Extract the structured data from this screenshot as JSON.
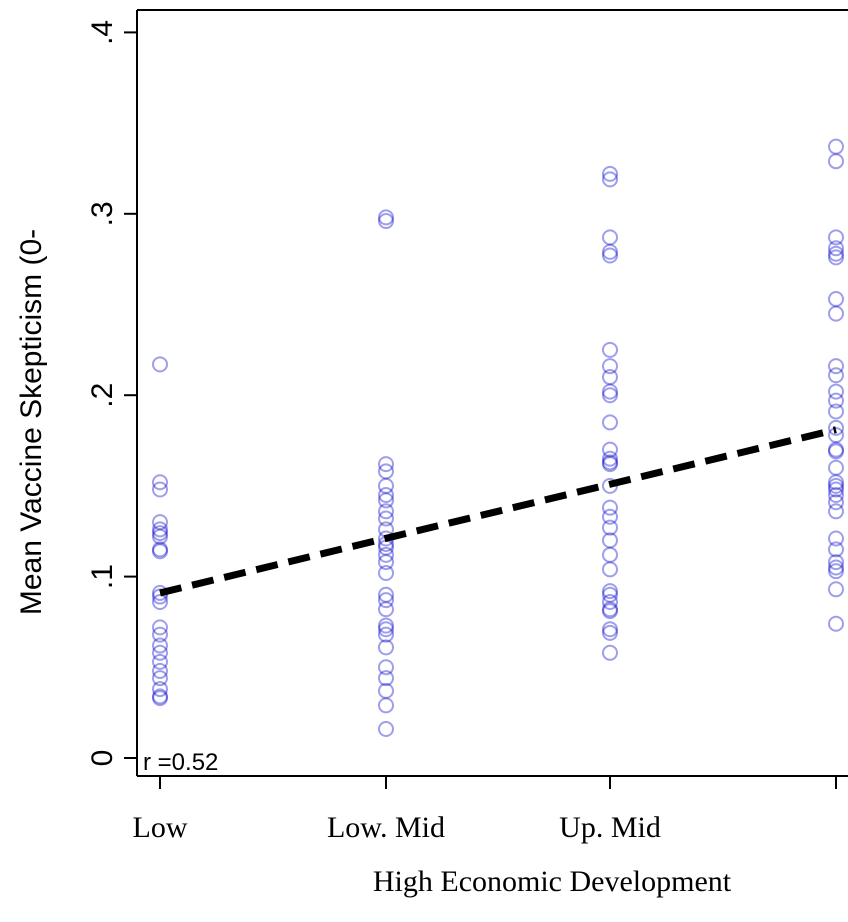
{
  "chart_data": {
    "type": "scatter",
    "xlabel": "High Economic Development",
    "ylabel": "Mean Vaccine Skepticism (0-",
    "categories": [
      "Low",
      "Low. Mid",
      "Up. Mid",
      ""
    ],
    "yticks": [
      {
        "value": 0,
        "label": "0"
      },
      {
        "value": 0.1,
        "label": ".1"
      },
      {
        "value": 0.2,
        "label": ".2"
      },
      {
        "value": 0.3,
        "label": ".3"
      },
      {
        "value": 0.4,
        "label": ".4"
      }
    ],
    "ylim": [
      -0.007,
      0.43
    ],
    "annotation": "r =0.52",
    "colors": {
      "points": "#0000cc",
      "fit_line": "#000000",
      "frame": "#000000"
    },
    "series": [
      {
        "category_index": 0,
        "values": [
          0.217,
          0.152,
          0.148,
          0.13,
          0.126,
          0.124,
          0.122,
          0.115,
          0.114,
          0.091,
          0.089,
          0.086,
          0.072,
          0.068,
          0.062,
          0.058,
          0.053,
          0.048,
          0.044,
          0.038,
          0.034,
          0.033
        ]
      },
      {
        "category_index": 1,
        "values": [
          0.298,
          0.296,
          0.162,
          0.158,
          0.15,
          0.145,
          0.142,
          0.136,
          0.132,
          0.126,
          0.121,
          0.118,
          0.116,
          0.112,
          0.108,
          0.102,
          0.09,
          0.087,
          0.082,
          0.073,
          0.071,
          0.068,
          0.061,
          0.05,
          0.044,
          0.037,
          0.029,
          0.016
        ]
      },
      {
        "category_index": 2,
        "values": [
          0.322,
          0.319,
          0.287,
          0.279,
          0.277,
          0.225,
          0.216,
          0.21,
          0.202,
          0.2,
          0.185,
          0.17,
          0.165,
          0.163,
          0.162,
          0.15,
          0.138,
          0.133,
          0.127,
          0.12,
          0.112,
          0.104,
          0.092,
          0.09,
          0.086,
          0.082,
          0.081,
          0.071,
          0.069,
          0.058
        ]
      },
      {
        "category_index": 3,
        "values": [
          0.337,
          0.329,
          0.287,
          0.281,
          0.278,
          0.276,
          0.253,
          0.245,
          0.216,
          0.211,
          0.202,
          0.197,
          0.191,
          0.182,
          0.178,
          0.17,
          0.169,
          0.16,
          0.152,
          0.15,
          0.148,
          0.145,
          0.141,
          0.136,
          0.121,
          0.115,
          0.108,
          0.105,
          0.103,
          0.093,
          0.074
        ]
      }
    ],
    "fit_line": {
      "start": {
        "x": 0,
        "y": 0.091
      },
      "end": {
        "x": 3,
        "y": 0.181
      }
    }
  }
}
